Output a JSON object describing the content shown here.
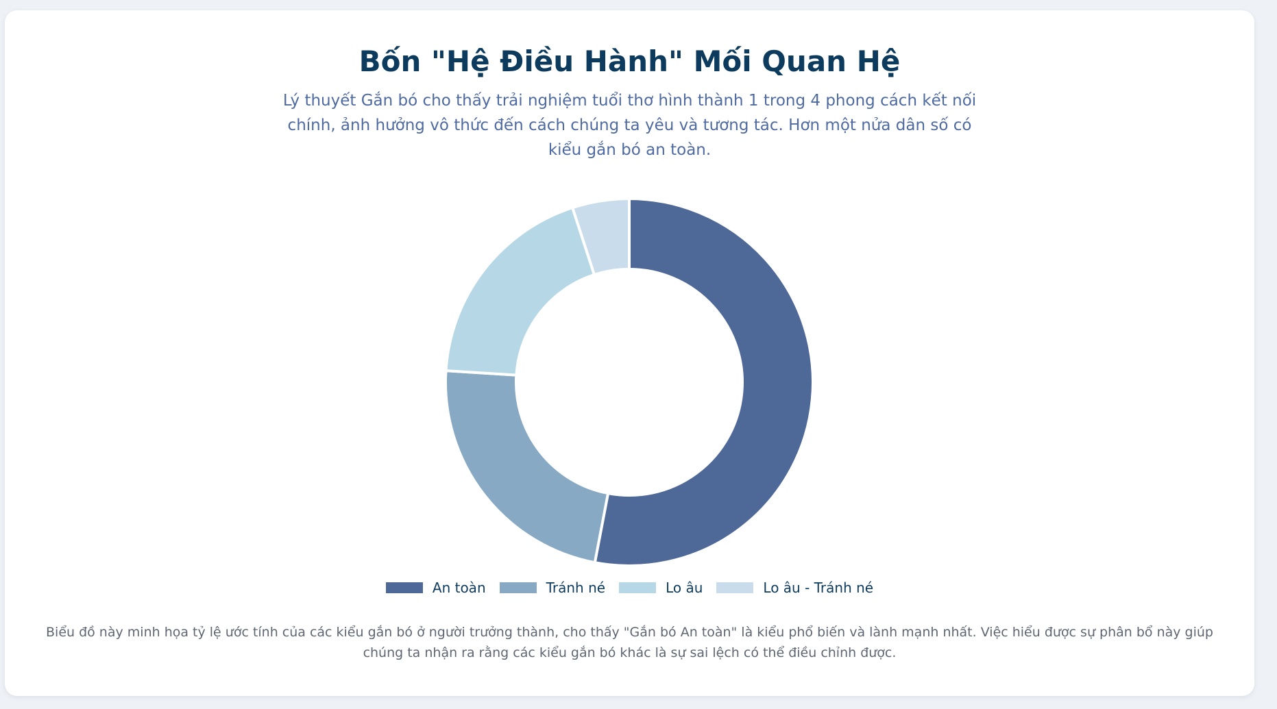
{
  "chart_data": {
    "type": "pie",
    "title": "Bốn \"Hệ Điều Hành\" Mối Quan Hệ",
    "subtitle": "Lý thuyết Gắn bó cho thấy trải nghiệm tuổi thơ hình thành 1 trong 4 phong cách kết nối chính, ảnh hưởng vô thức đến cách chúng ta yêu và tương tác. Hơn một nửa dân số có kiểu gắn bó an toàn.",
    "categories": [
      "An toàn",
      "Tránh né",
      "Lo âu",
      "Lo âu - Tránh né"
    ],
    "values": [
      53,
      23,
      19,
      5
    ],
    "colors": [
      "#4e6898",
      "#87a9c4",
      "#b6d7e6",
      "#c9dcec"
    ],
    "legend": "bottom",
    "description": "Biểu đồ này minh họa tỷ lệ ước tính của các kiểu gắn bó ở người trưởng thành, cho thấy \"Gắn bó An toàn\" là kiểu phổ biến và lành mạnh nhất. Việc hiểu được sự phân bổ này giúp chúng ta nhận ra rằng các kiểu gắn bó khác là sự sai lệch có thể điều chỉnh được."
  }
}
